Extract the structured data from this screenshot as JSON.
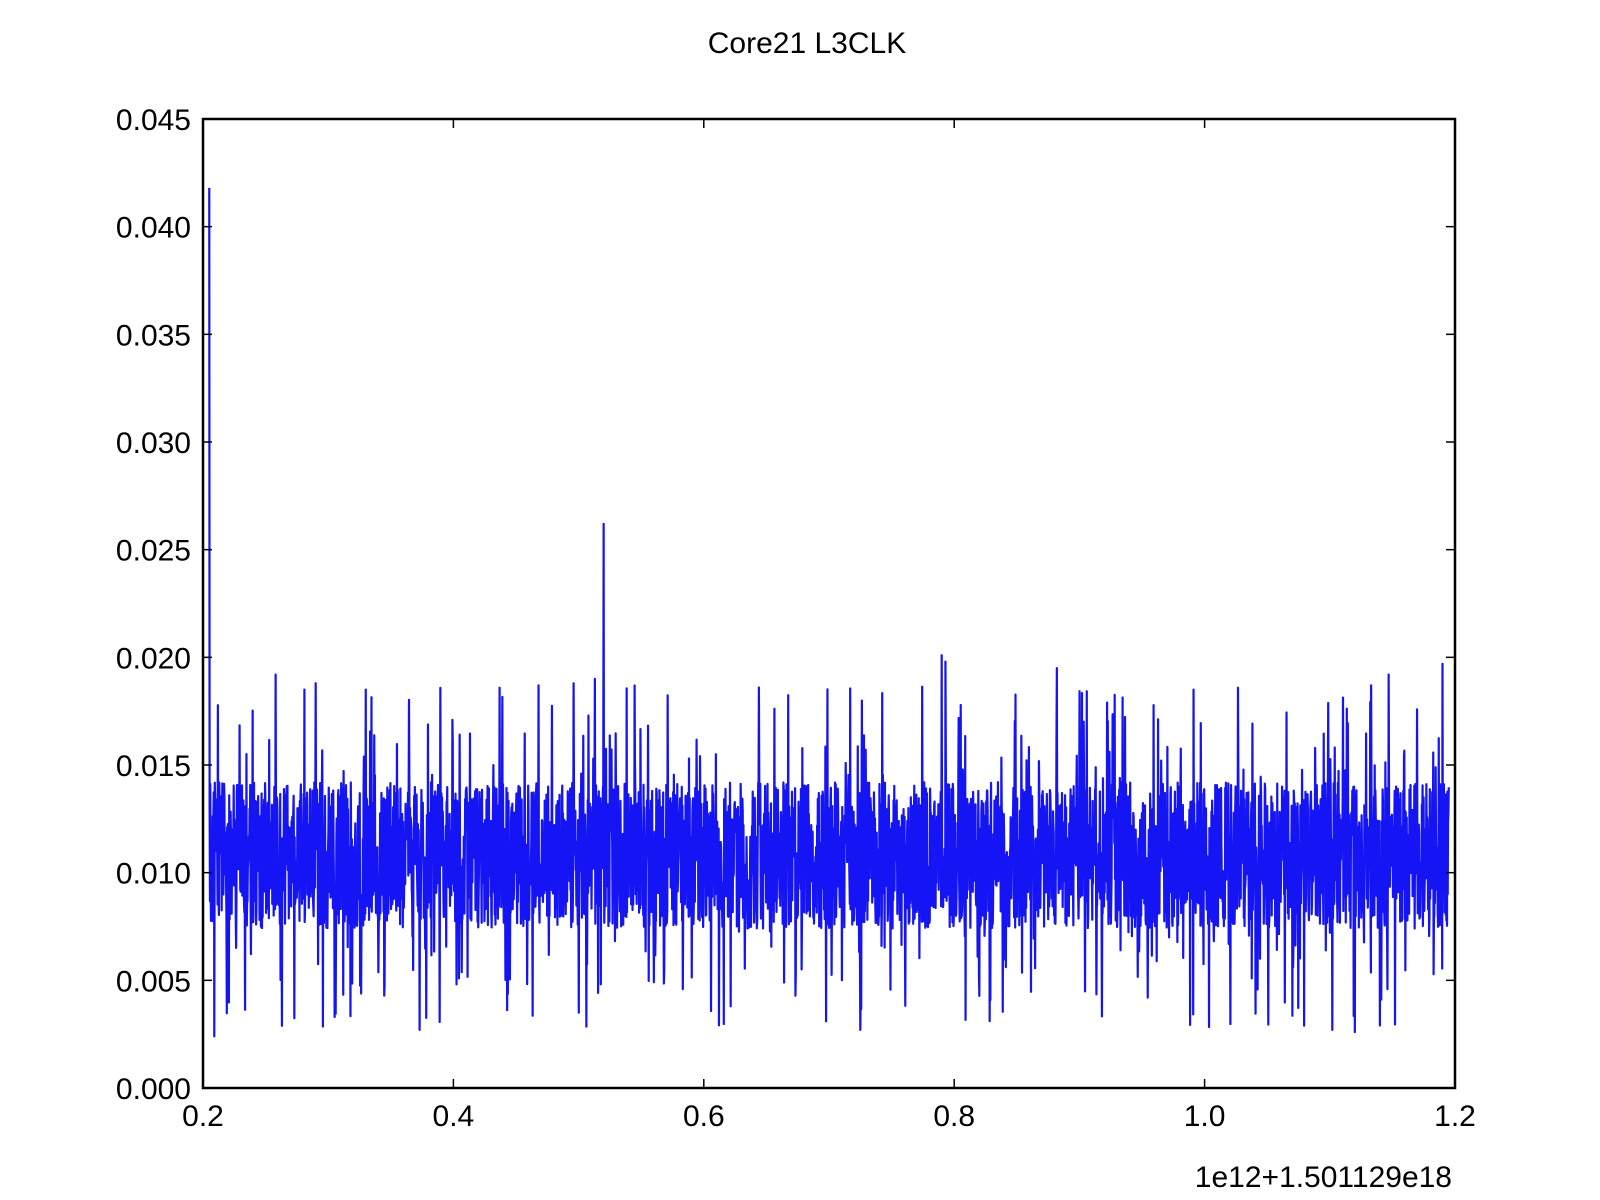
{
  "chart_data": {
    "type": "line",
    "title": "Core21 L3CLK",
    "xlabel": "",
    "ylabel": "",
    "x_offset_label": "1e12+1.501129e18",
    "xlim": [
      0.2,
      1.2
    ],
    "ylim": [
      0.0,
      0.045
    ],
    "xticks": [
      "0.2",
      "0.4",
      "0.6",
      "0.8",
      "1.0",
      "1.2"
    ],
    "yticks": [
      "0.000",
      "0.005",
      "0.010",
      "0.015",
      "0.020",
      "0.025",
      "0.030",
      "0.035",
      "0.040",
      "0.045"
    ],
    "grid": false,
    "series": [
      {
        "color": "#1414f5",
        "baseline": 0.0108,
        "x_start": 0.205,
        "x_end": 1.195,
        "peaks": [
          {
            "x": 0.205,
            "y": 0.0418
          },
          {
            "x": 0.52,
            "y": 0.0262
          },
          {
            "x": 0.513,
            "y": 0.019
          },
          {
            "x": 0.258,
            "y": 0.0192
          },
          {
            "x": 0.281,
            "y": 0.0185
          },
          {
            "x": 0.29,
            "y": 0.0188
          },
          {
            "x": 0.33,
            "y": 0.0185
          },
          {
            "x": 0.468,
            "y": 0.0187
          },
          {
            "x": 0.496,
            "y": 0.0188
          },
          {
            "x": 0.644,
            "y": 0.0186
          },
          {
            "x": 0.79,
            "y": 0.0201
          },
          {
            "x": 0.793,
            "y": 0.0198
          },
          {
            "x": 0.882,
            "y": 0.0195
          },
          {
            "x": 1.133,
            "y": 0.0187
          },
          {
            "x": 1.147,
            "y": 0.0192
          },
          {
            "x": 1.19,
            "y": 0.0197
          }
        ],
        "troughs": [
          {
            "x": 0.209,
            "y": 0.0024
          },
          {
            "x": 0.373,
            "y": 0.0027
          },
          {
            "x": 0.725,
            "y": 0.0027
          },
          {
            "x": 1.102,
            "y": 0.0027
          },
          {
            "x": 1.12,
            "y": 0.0026
          },
          {
            "x": 1.14,
            "y": 0.0029
          }
        ]
      }
    ]
  }
}
